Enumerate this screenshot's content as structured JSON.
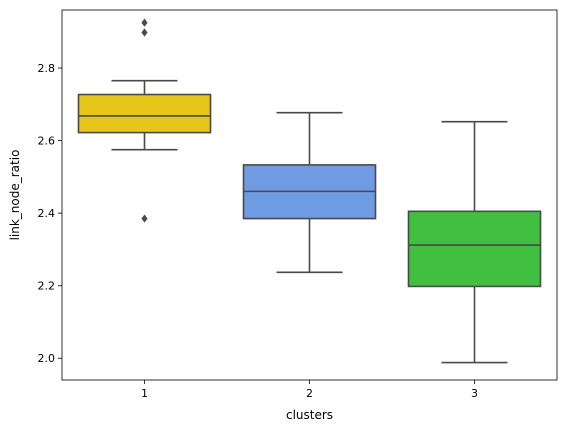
{
  "chart_data": {
    "type": "box",
    "xlabel": "clusters",
    "ylabel": "link_node_ratio",
    "categories": [
      "1",
      "2",
      "3"
    ],
    "ylim": [
      1.94,
      2.96
    ],
    "yticks": [
      "2.0",
      "2.2",
      "2.4",
      "2.6",
      "2.8"
    ],
    "ytick_values": [
      2.0,
      2.2,
      2.4,
      2.6,
      2.8
    ],
    "grid": false,
    "boxes": [
      {
        "category": "1",
        "whisker_low": 2.575,
        "q1": 2.622,
        "median": 2.668,
        "q3": 2.727,
        "whisker_high": 2.765,
        "outliers": [
          2.925,
          2.898,
          2.385
        ],
        "color": "#e6c619"
      },
      {
        "category": "2",
        "whisker_low": 2.237,
        "q1": 2.385,
        "median": 2.46,
        "q3": 2.533,
        "whisker_high": 2.677,
        "outliers": [],
        "color": "#6f9be3"
      },
      {
        "category": "3",
        "whisker_low": 1.988,
        "q1": 2.198,
        "median": 2.312,
        "q3": 2.405,
        "whisker_high": 2.652,
        "outliers": [],
        "color": "#40bf40"
      }
    ]
  }
}
